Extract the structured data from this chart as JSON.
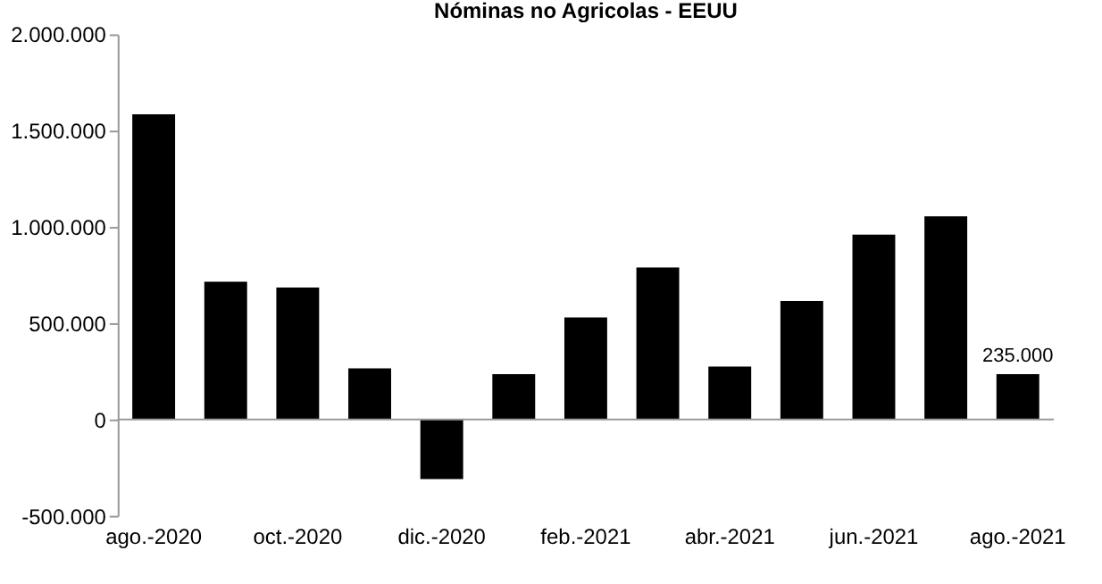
{
  "chart_data": {
    "type": "bar",
    "title": "Nóminas no Agricolas - EEUU",
    "categories": [
      "ago.-2020",
      null,
      "oct.-2020",
      null,
      "dic.-2020",
      null,
      "feb.-2021",
      null,
      "abr.-2021",
      null,
      "jun.-2021",
      null,
      "ago.-2021"
    ],
    "values": [
      1585000,
      715000,
      685000,
      265000,
      -310000,
      235000,
      530000,
      790000,
      275000,
      615000,
      960000,
      1055000,
      235000
    ],
    "value_labels": [
      null,
      null,
      null,
      null,
      null,
      null,
      null,
      null,
      null,
      null,
      null,
      null,
      "235.000"
    ],
    "color": "#000000",
    "ylim": [
      -500000,
      2000000
    ],
    "yticks": [
      {
        "value": -500000,
        "label": "-500.000"
      },
      {
        "value": 0,
        "label": "0"
      },
      {
        "value": 500000,
        "label": "500.000"
      },
      {
        "value": 1000000,
        "label": "1.000.000"
      },
      {
        "value": 1500000,
        "label": "1.500.000"
      },
      {
        "value": 2000000,
        "label": "2.000.000"
      }
    ],
    "line_style": "solid"
  }
}
